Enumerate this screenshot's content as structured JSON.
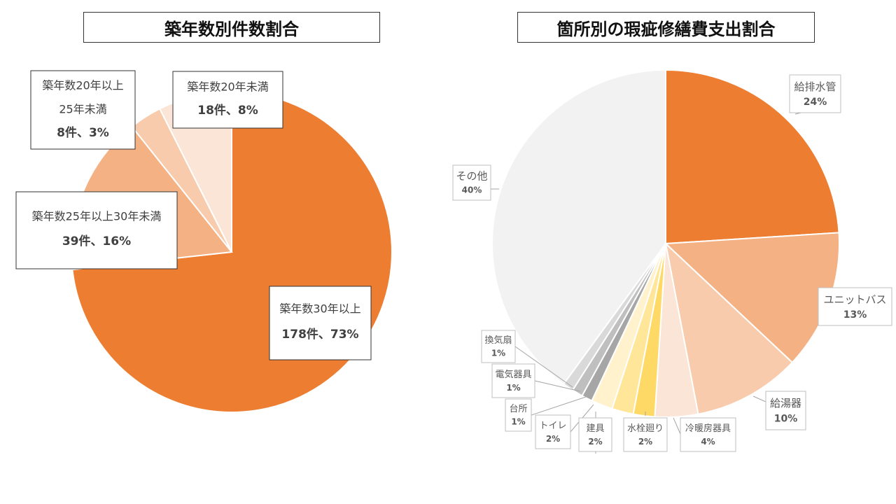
{
  "chart_data": [
    {
      "type": "pie",
      "title": "築年数別件数割合",
      "colors": [
        "#ED7D31",
        "#F4B183",
        "#F8CBAD",
        "#FBE5D6"
      ],
      "slices": [
        {
          "lines": [
            "築年数30年以上"
          ],
          "value_text": "178件、73%",
          "count": 178,
          "percent": 73
        },
        {
          "lines": [
            "築年数25年以上30年未満"
          ],
          "value_text": "39件、16%",
          "count": 39,
          "percent": 16
        },
        {
          "lines": [
            "築年数20年以上",
            "25年未満"
          ],
          "value_text": "8件、3%",
          "count": 8,
          "percent": 3
        },
        {
          "lines": [
            "築年数20年未満"
          ],
          "value_text": "18件、8%",
          "count": 18,
          "percent": 8
        }
      ]
    },
    {
      "type": "pie",
      "title": "箇所別の瑕疵修繕費支出割合",
      "colors": [
        "#ED7D31",
        "#F4B183",
        "#F8CBAD",
        "#FBE5D6",
        "#FFD966",
        "#FFE699",
        "#FFF2CC",
        "#A6A6A6",
        "#BFBFBF",
        "#D9D9D9",
        "#F2F2F2"
      ],
      "slices": [
        {
          "label": "給排水管",
          "pct_text": "24%",
          "percent": 24
        },
        {
          "label": "ユニットバス",
          "pct_text": "13%",
          "percent": 13
        },
        {
          "label": "給湯器",
          "pct_text": "10%",
          "percent": 10
        },
        {
          "label": "冷暖房器具",
          "pct_text": "4%",
          "percent": 4
        },
        {
          "label": "水栓廻り",
          "pct_text": "2%",
          "percent": 2
        },
        {
          "label": "建具",
          "pct_text": "2%",
          "percent": 2
        },
        {
          "label": "トイレ",
          "pct_text": "2%",
          "percent": 2
        },
        {
          "label": "台所",
          "pct_text": "1%",
          "percent": 1
        },
        {
          "label": "電気器具",
          "pct_text": "1%",
          "percent": 1
        },
        {
          "label": "換気扇",
          "pct_text": "1%",
          "percent": 1
        },
        {
          "label": "その他",
          "pct_text": "40%",
          "percent": 40
        }
      ]
    }
  ]
}
